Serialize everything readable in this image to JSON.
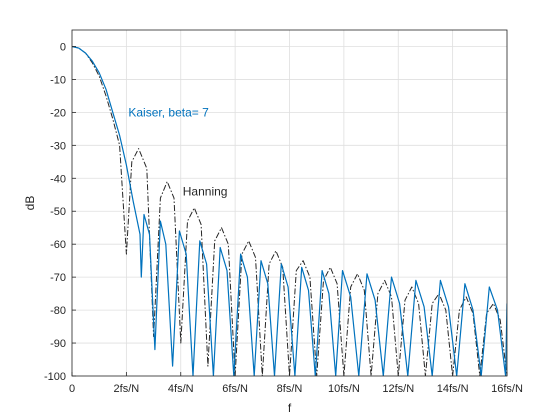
{
  "chart_data": {
    "type": "line",
    "xlabel": "f",
    "ylabel": "dB",
    "xlim": [
      0,
      16
    ],
    "ylim": [
      -100,
      5
    ],
    "grid": true,
    "x_ticks": [
      0,
      2,
      4,
      6,
      8,
      10,
      12,
      14,
      16
    ],
    "x_tick_labels": [
      "0",
      "2fs/N",
      "4fs/N",
      "6fs/N",
      "8fs/N",
      "10fs/N",
      "12fs/N",
      "14fs/N",
      "16fs/N"
    ],
    "y_ticks": [
      0,
      -10,
      -20,
      -30,
      -40,
      -50,
      -60,
      -70,
      -80,
      -90,
      -100
    ],
    "y_tick_labels": [
      "0",
      "-10",
      "-20",
      "-30",
      "-40",
      "-50",
      "-60",
      "-70",
      "-80",
      "-90",
      "-100"
    ],
    "annotations": [
      {
        "text": "Kaiser, beta= 7",
        "x": 2.0,
        "y": -20,
        "color": "#0072BD"
      },
      {
        "text": "Hanning",
        "x": 4.0,
        "y": -44,
        "color": "#262626"
      }
    ],
    "series": [
      {
        "color": "#0072BD",
        "style": "solid",
        "x": [
          0,
          0.25,
          0.5,
          0.75,
          1.0,
          1.25,
          1.5,
          1.75,
          2.0,
          2.25,
          2.5,
          2.55,
          2.65,
          2.85,
          3.05,
          3.25,
          3.45,
          3.7,
          3.95,
          4.2,
          4.45,
          4.7,
          4.95,
          5.2,
          5.45,
          5.7,
          5.95,
          6.2,
          6.45,
          6.7,
          6.95,
          7.2,
          7.45,
          7.7,
          7.95,
          8.2,
          8.45,
          8.7,
          8.95,
          9.2,
          9.45,
          9.7,
          9.95,
          10.25,
          10.55,
          10.85,
          11.15,
          11.45,
          11.75,
          12.05,
          12.35,
          12.65,
          12.95,
          13.25,
          13.55,
          13.85,
          14.15,
          14.45,
          14.75,
          15.05,
          15.35,
          15.65,
          15.95,
          16.0
        ],
        "y": [
          0,
          -0.5,
          -2,
          -4.5,
          -8,
          -13,
          -20,
          -27,
          -36,
          -47,
          -57,
          -70,
          -51,
          -57,
          -92,
          -53,
          -60,
          -97,
          -56,
          -63,
          -100,
          -59,
          -66,
          -100,
          -61,
          -68,
          -100,
          -63,
          -70,
          -100,
          -65,
          -72,
          -100,
          -66,
          -73,
          -100,
          -67,
          -74,
          -100,
          -68,
          -75,
          -100,
          -68,
          -76,
          -100,
          -69,
          -77,
          -100,
          -70,
          -78,
          -100,
          -71,
          -79,
          -100,
          -71,
          -79,
          -100,
          -72,
          -80,
          -100,
          -73,
          -80,
          -100,
          -78
        ]
      },
      {
        "color": "#262626",
        "style": "dashdot",
        "x": [
          0,
          0.25,
          0.5,
          0.75,
          1.0,
          1.25,
          1.5,
          1.75,
          2.0,
          2.2,
          2.45,
          2.75,
          3.0,
          3.25,
          3.5,
          3.75,
          4.0,
          4.25,
          4.5,
          4.75,
          5.0,
          5.25,
          5.5,
          5.75,
          6.0,
          6.25,
          6.5,
          6.75,
          7.0,
          7.25,
          7.5,
          7.75,
          8.0,
          8.25,
          8.5,
          8.75,
          9.0,
          9.25,
          9.5,
          9.75,
          10.0,
          10.25,
          10.5,
          10.75,
          11.0,
          11.25,
          11.5,
          11.75,
          12.0,
          12.25,
          12.5,
          12.75,
          13.0,
          13.25,
          13.5,
          13.75,
          14.0,
          14.25,
          14.5,
          14.75,
          15.0,
          15.25,
          15.5,
          15.75,
          16.0
        ],
        "y": [
          0,
          -0.5,
          -2,
          -5,
          -9,
          -15,
          -22,
          -30,
          -63,
          -35,
          -31,
          -37,
          -88,
          -46,
          -41,
          -46,
          -90,
          -53,
          -49,
          -54,
          -97,
          -59,
          -55,
          -60,
          -100,
          -63,
          -59,
          -64,
          -100,
          -66,
          -62,
          -67,
          -100,
          -68,
          -65,
          -70,
          -100,
          -71,
          -67,
          -72,
          -100,
          -73,
          -69,
          -74,
          -100,
          -75,
          -71,
          -76,
          -100,
          -77,
          -73,
          -78,
          -100,
          -78,
          -75,
          -80,
          -100,
          -80,
          -76,
          -81,
          -100,
          -81,
          -78,
          -83,
          -100
        ]
      }
    ]
  }
}
